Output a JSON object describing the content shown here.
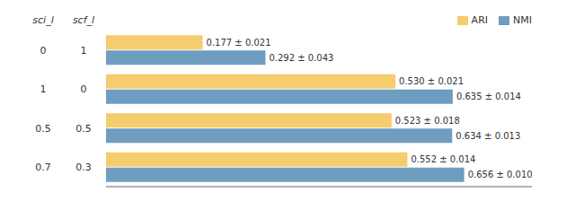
{
  "chart_data": {
    "type": "bar",
    "orientation": "horizontal",
    "column_headers": [
      "sci_l",
      "scf_l"
    ],
    "categories": [
      [
        "0",
        "1"
      ],
      [
        "1",
        "0"
      ],
      [
        "0.5",
        "0.5"
      ],
      [
        "0.7",
        "0.3"
      ]
    ],
    "series": [
      {
        "name": "ARI",
        "color": "#F5CC6E",
        "values": [
          0.177,
          0.53,
          0.523,
          0.552
        ],
        "value_labels": [
          "0.177 ± 0.021",
          "0.530 ± 0.021",
          "0.523 ± 0.018",
          "0.552 ± 0.014"
        ]
      },
      {
        "name": "NMI",
        "color": "#6E9DC0",
        "values": [
          0.292,
          0.635,
          0.634,
          0.656
        ],
        "value_labels": [
          "0.292 ± 0.043",
          "0.635 ± 0.014",
          "0.634 ± 0.013",
          "0.656 ± 0.010"
        ]
      }
    ],
    "xlim": [
      0,
      0.78
    ],
    "tick_labels": false,
    "legend": "upper right",
    "data_labels": true
  }
}
